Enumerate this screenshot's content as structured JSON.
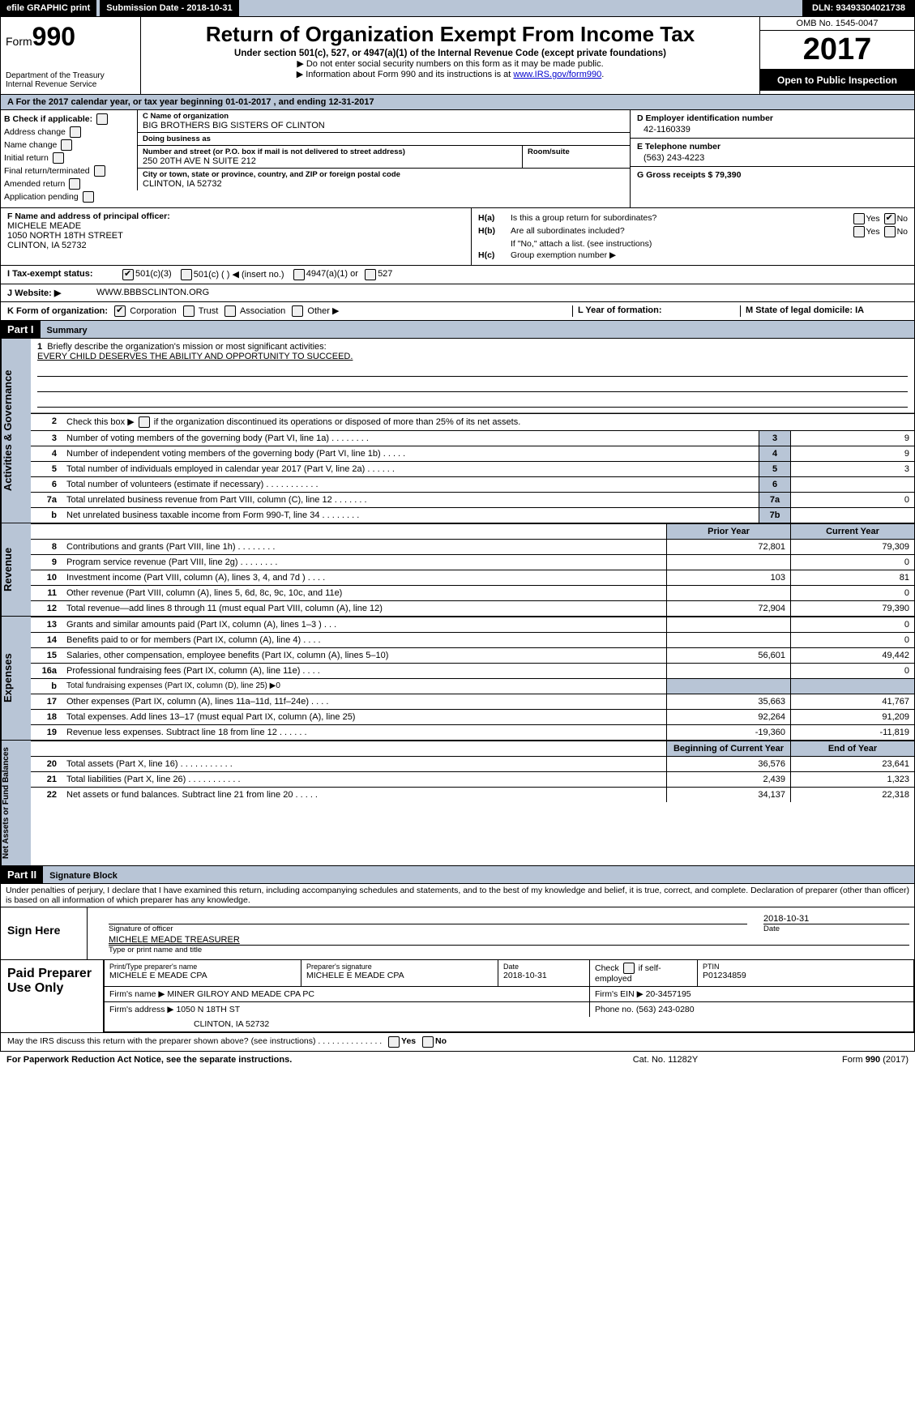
{
  "topbar": {
    "efile": "efile GRAPHIC print",
    "sub": "Submission Date - 2018-10-31",
    "dln": "DLN: 93493304021738"
  },
  "hdr": {
    "form_label": "Form",
    "form_num": "990",
    "dept1": "Department of the Treasury",
    "dept2": "Internal Revenue Service",
    "title": "Return of Organization Exempt From Income Tax",
    "sub": "Under section 501(c), 527, or 4947(a)(1) of the Internal Revenue Code (except private foundations)",
    "n1": "▶ Do not enter social security numbers on this form as it may be made public.",
    "n2a": "▶ Information about Form 990 and its instructions is at ",
    "n2b": "www.IRS.gov/form990",
    "omb": "OMB No. 1545-0047",
    "year": "2017",
    "open": "Open to Public Inspection"
  },
  "a_line": "A  For the 2017 calendar year, or tax year beginning 01-01-2017       , and ending 12-31-2017",
  "b": {
    "hdr": "B Check if applicable:",
    "addr": "Address change",
    "name": "Name change",
    "init": "Initial return",
    "final": "Final return/terminated",
    "amend": "Amended return",
    "app": "Application pending"
  },
  "c": {
    "name_lbl": "C Name of organization",
    "name": "BIG BROTHERS BIG SISTERS OF CLINTON",
    "dba_lbl": "Doing business as",
    "dba": "",
    "addr_lbl": "Number and street (or P.O. box if mail is not delivered to street address)",
    "addr": "250 20TH AVE N SUITE 212",
    "room_lbl": "Room/suite",
    "city_lbl": "City or town, state or province, country, and ZIP or foreign postal code",
    "city": "CLINTON, IA  52732"
  },
  "d": {
    "lbl": "D Employer identification number",
    "val": "42-1160339"
  },
  "e": {
    "lbl": "E Telephone number",
    "val": "(563) 243-4223"
  },
  "g": {
    "lbl": "G Gross receipts $ 79,390"
  },
  "f": {
    "lbl": "F Name and address of principal officer:",
    "l1": "MICHELE MEADE",
    "l2": "1050 NORTH 18TH STREET",
    "l3": "CLINTON, IA  52732"
  },
  "h": {
    "a_lbl": "H(a)",
    "a_txt": "Is this a group return for subordinates?",
    "b_lbl": "H(b)",
    "b_txt": "Are all subordinates included?",
    "b_note": "If \"No,\" attach a list. (see instructions)",
    "c_lbl": "H(c)",
    "c_txt": "Group exemption number ▶",
    "yes": "Yes",
    "no": "No"
  },
  "i": {
    "lbl": "I    Tax-exempt status:",
    "a": "501(c)(3)",
    "b": "501(c) (  ) ◀ (insert no.)",
    "c": "4947(a)(1) or",
    "d": "527"
  },
  "j": {
    "lbl": "J   Website: ▶",
    "val": "WWW.BBBSCLINTON.ORG"
  },
  "k": {
    "lbl": "K Form of organization:",
    "a": "Corporation",
    "b": "Trust",
    "c": "Association",
    "d": "Other ▶"
  },
  "l": {
    "lbl": "L Year of formation:",
    "val": ""
  },
  "m": {
    "lbl": "M State of legal domicile: IA"
  },
  "p1": {
    "hdr": "Part I",
    "title": "Summary",
    "l1": "Briefly describe the organization's mission or most significant activities:",
    "l1v": "EVERY CHILD DESERVES THE ABILITY AND OPPORTUNITY TO SUCCEED.",
    "l2": "Check this box ▶         if the organization discontinued its operations or disposed of more than 25% of its net assets.",
    "rows_gov": [
      {
        "n": "3",
        "t": "Number of voting members of the governing body (Part VI, line 1a)  .     .     .     .     .     .     .     .",
        "b": "3",
        "v": "9"
      },
      {
        "n": "4",
        "t": "Number of independent voting members of the governing body (Part VI, line 1b)     .     .     .     .     .",
        "b": "4",
        "v": "9"
      },
      {
        "n": "5",
        "t": "Total number of individuals employed in calendar year 2017 (Part V, line 2a)     .     .     .     .     .     .",
        "b": "5",
        "v": "3"
      },
      {
        "n": "6",
        "t": "Total number of volunteers (estimate if necessary)     .     .     .     .     .     .     .     .     .     .     .",
        "b": "6",
        "v": ""
      },
      {
        "n": "7a",
        "t": "Total unrelated business revenue from Part VIII, column (C), line 12     .     .     .     .     .     .     .",
        "b": "7a",
        "v": "0"
      },
      {
        "n": "b",
        "t": "Net unrelated business taxable income from Form 990-T, line 34     .     .     .     .     .     .     .     .",
        "b": "7b",
        "v": ""
      }
    ],
    "col_py": "Prior Year",
    "col_cy": "Current Year",
    "rows_rev": [
      {
        "n": "8",
        "t": "Contributions and grants (Part VIII, line 1h)     .     .     .     .     .     .     .     .",
        "py": "72,801",
        "cy": "79,309"
      },
      {
        "n": "9",
        "t": "Program service revenue (Part VIII, line 2g)     .     .     .     .     .     .     .     .",
        "py": "",
        "cy": "0"
      },
      {
        "n": "10",
        "t": "Investment income (Part VIII, column (A), lines 3, 4, and 7d )     .     .     .     .",
        "py": "103",
        "cy": "81"
      },
      {
        "n": "11",
        "t": "Other revenue (Part VIII, column (A), lines 5, 6d, 8c, 9c, 10c, and 11e)",
        "py": "",
        "cy": "0"
      },
      {
        "n": "12",
        "t": "Total revenue—add lines 8 through 11 (must equal Part VIII, column (A), line 12)",
        "py": "72,904",
        "cy": "79,390"
      }
    ],
    "rows_exp": [
      {
        "n": "13",
        "t": "Grants and similar amounts paid (Part IX, column (A), lines 1–3 )     .     .     .",
        "py": "",
        "cy": "0"
      },
      {
        "n": "14",
        "t": "Benefits paid to or for members (Part IX, column (A), line 4)     .     .     .     .",
        "py": "",
        "cy": "0"
      },
      {
        "n": "15",
        "t": "Salaries, other compensation, employee benefits (Part IX, column (A), lines 5–10)",
        "py": "56,601",
        "cy": "49,442"
      },
      {
        "n": "16a",
        "t": "Professional fundraising fees (Part IX, column (A), line 11e)     .     .     .     .",
        "py": "",
        "cy": "0"
      },
      {
        "n": "b",
        "t": "Total fundraising expenses (Part IX, column (D), line 25) ▶0",
        "py": "SHADE",
        "cy": "SHADE"
      },
      {
        "n": "17",
        "t": "Other expenses (Part IX, column (A), lines 11a–11d, 11f–24e)     .     .     .     .",
        "py": "35,663",
        "cy": "41,767"
      },
      {
        "n": "18",
        "t": "Total expenses. Add lines 13–17 (must equal Part IX, column (A), line 25)",
        "py": "92,264",
        "cy": "91,209"
      },
      {
        "n": "19",
        "t": "Revenue less expenses. Subtract line 18 from line 12     .     .     .     .     .     .",
        "py": "-19,360",
        "cy": "-11,819"
      }
    ],
    "col_boy": "Beginning of Current Year",
    "col_eoy": "End of Year",
    "rows_net": [
      {
        "n": "20",
        "t": "Total assets (Part X, line 16)     .     .     .     .     .     .     .     .     .     .     .",
        "py": "36,576",
        "cy": "23,641"
      },
      {
        "n": "21",
        "t": "Total liabilities (Part X, line 26)     .     .     .     .     .     .     .     .     .     .     .",
        "py": "2,439",
        "cy": "1,323"
      },
      {
        "n": "22",
        "t": "Net assets or fund balances. Subtract line 21 from line 20     .     .     .     .     .",
        "py": "34,137",
        "cy": "22,318"
      }
    ]
  },
  "p2": {
    "hdr": "Part II",
    "title": "Signature Block",
    "decl": "Under penalties of perjury, I declare that I have examined this return, including accompanying schedules and statements, and to the best of my knowledge and belief, it is true, correct, and complete. Declaration of preparer (other than officer) is based on all information of which preparer has any knowledge."
  },
  "sign": {
    "here": "Sign Here",
    "sig_lbl": "Signature of officer",
    "date": "2018-10-31",
    "date_lbl": "Date",
    "name": "MICHELE MEADE  TREASURER",
    "name_lbl": "Type or print name and title"
  },
  "paid": {
    "hdr": "Paid Preparer Use Only",
    "pn_lbl": "Print/Type preparer's name",
    "pn": "MICHELE E MEADE CPA",
    "ps_lbl": "Preparer's signature",
    "ps": "MICHELE E MEADE CPA",
    "pd_lbl": "Date",
    "pd": "2018-10-31",
    "se_lbl": "Check        if self-employed",
    "ptin_lbl": "PTIN",
    "ptin": "P01234859",
    "fn_lbl": "Firm's name      ▶",
    "fn": "MINER GILROY AND MEADE CPA PC",
    "fa_lbl": "Firm's address ▶",
    "fa1": "1050 N 18TH ST",
    "fa2": "CLINTON, IA  52732",
    "ein_lbl": "Firm's EIN ▶",
    "ein": "20-3457195",
    "ph_lbl": "Phone no.",
    "ph": "(563) 243-0280"
  },
  "irs_discuss": "May the IRS discuss this return with the preparer shown above? (see instructions)    .     .     .     .     .     .     .     .     .     .     .     .     .     .",
  "footer": {
    "l": "For Paperwork Reduction Act Notice, see the separate instructions.",
    "m": "Cat. No. 11282Y",
    "r": "Form 990 (2017)"
  },
  "sidebars": {
    "gov": "Activities & Governance",
    "rev": "Revenue",
    "exp": "Expenses",
    "net": "Net Assets or Fund Balances"
  }
}
